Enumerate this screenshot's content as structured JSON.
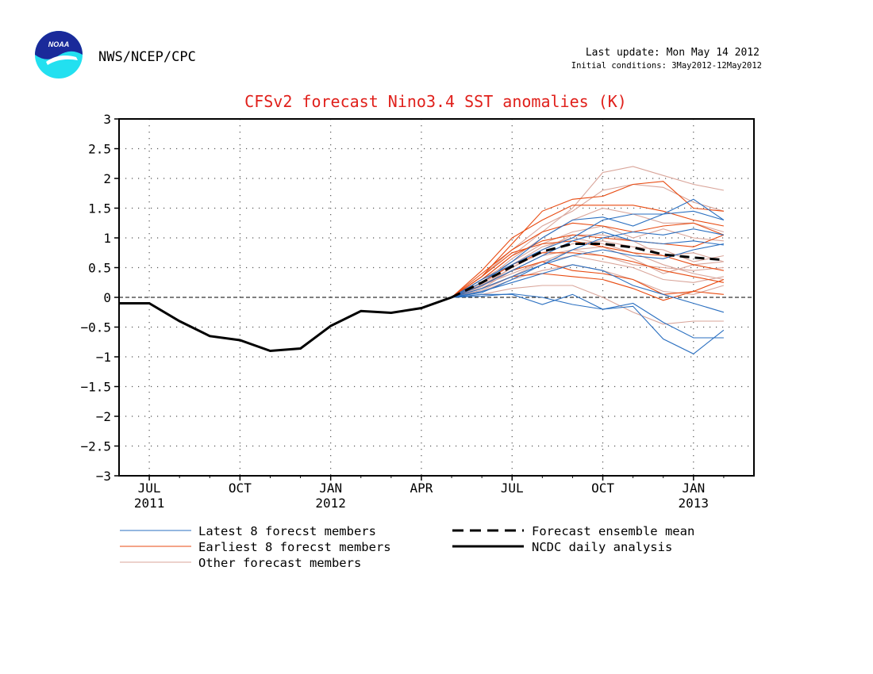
{
  "header": {
    "agency": "NWS/NCEP/CPC",
    "logo_text": "NOAA",
    "last_update": "Last update: Mon May 14 2012",
    "initial_conditions": "Initial conditions: 3May2012-12May2012"
  },
  "colors": {
    "title": "#e0201b",
    "latest": "#2a6fc0",
    "earliest": "#e84a10",
    "other": "#d9a59a",
    "mean": "#000000",
    "analysis": "#000000",
    "logo_top": "#1a2a9a",
    "logo_bottom": "#22e0f0"
  },
  "chart_data": {
    "type": "line",
    "title": "CFSv2 forecast Nino3.4 SST anomalies (K)",
    "xlabel": "",
    "ylabel": "",
    "ylim": [
      -3,
      3
    ],
    "xlim": [
      0,
      21
    ],
    "grid": true,
    "legend_position": "bottom",
    "yticks": [
      "3",
      "2.5",
      "2",
      "1.5",
      "1",
      "0.5",
      "0",
      "-0.5",
      "-1",
      "-1.5",
      "-2",
      "-2.5",
      "-3"
    ],
    "xticks": [
      {
        "month": "JUL",
        "year": "2011"
      },
      {
        "month": "OCT",
        "year": ""
      },
      {
        "month": "JAN",
        "year": "2012"
      },
      {
        "month": "APR",
        "year": ""
      },
      {
        "month": "JUL",
        "year": ""
      },
      {
        "month": "OCT",
        "year": ""
      },
      {
        "month": "JAN",
        "year": "2013"
      }
    ],
    "legend": [
      {
        "label": "Latest 8 forecst members",
        "style": "latest"
      },
      {
        "label": "Earliest 8 forecst members",
        "style": "earliest"
      },
      {
        "label": "Other forecast members",
        "style": "other"
      },
      {
        "label": "Forecast ensemble mean",
        "style": "mean"
      },
      {
        "label": "NCDC daily analysis",
        "style": "analysis"
      }
    ],
    "analysis": {
      "name": "NCDC daily analysis",
      "x": [
        "2011-06",
        "2011-07",
        "2011-08",
        "2011-09",
        "2011-10",
        "2011-11",
        "2011-12",
        "2012-01",
        "2012-02",
        "2012-03",
        "2012-04",
        "2012-05"
      ],
      "y": [
        -0.1,
        -0.1,
        -0.4,
        -0.65,
        -0.72,
        -0.9,
        -0.86,
        -0.48,
        -0.23,
        -0.26,
        -0.18,
        0.0
      ]
    },
    "forecast_months": [
      "2012-05",
      "2012-06",
      "2012-07",
      "2012-08",
      "2012-09",
      "2012-10",
      "2012-11",
      "2012-12",
      "2013-01",
      "2013-02"
    ],
    "ensemble_mean": {
      "name": "Forecast ensemble mean",
      "y": [
        0.0,
        0.25,
        0.52,
        0.77,
        0.9,
        0.9,
        0.84,
        0.72,
        0.67,
        0.63
      ]
    },
    "members_latest": [
      [
        0,
        0.05,
        0.05,
        -0.12,
        0.05,
        -0.2,
        -0.15,
        -0.7,
        -0.95,
        -0.55
      ],
      [
        0,
        0.02,
        0.06,
        0.0,
        -0.12,
        -0.2,
        -0.1,
        -0.42,
        -0.68,
        -0.68
      ],
      [
        0,
        0.1,
        0.25,
        0.4,
        0.55,
        0.45,
        0.2,
        0.05,
        -0.1,
        -0.25
      ],
      [
        0,
        0.3,
        0.55,
        0.8,
        1.0,
        1.3,
        1.4,
        1.4,
        1.45,
        1.3
      ],
      [
        0,
        0.25,
        0.6,
        1.0,
        1.3,
        1.35,
        1.2,
        1.4,
        1.65,
        1.3
      ],
      [
        0,
        0.2,
        0.45,
        0.7,
        0.95,
        1.1,
        0.95,
        0.9,
        0.95,
        0.88
      ],
      [
        0,
        0.15,
        0.35,
        0.55,
        0.7,
        0.8,
        0.7,
        0.65,
        0.8,
        0.9
      ],
      [
        0,
        0.08,
        0.3,
        0.55,
        0.8,
        1.0,
        1.1,
        1.05,
        1.15,
        1.05
      ]
    ],
    "members_earliest": [
      [
        0,
        0.35,
        0.9,
        1.45,
        1.65,
        1.7,
        1.9,
        1.95,
        1.5,
        1.45
      ],
      [
        0,
        0.45,
        1.0,
        1.3,
        1.55,
        1.55,
        1.55,
        1.45,
        1.3,
        1.2
      ],
      [
        0,
        0.4,
        0.8,
        1.1,
        1.25,
        1.2,
        1.1,
        1.2,
        1.25,
        1.05
      ],
      [
        0,
        0.3,
        0.7,
        0.95,
        1.05,
        1.0,
        0.95,
        0.9,
        0.85,
        1.05
      ],
      [
        0,
        0.35,
        0.75,
        0.9,
        0.95,
        0.85,
        0.75,
        0.7,
        0.55,
        0.45
      ],
      [
        0,
        0.25,
        0.55,
        0.75,
        0.75,
        0.7,
        0.6,
        0.45,
        0.35,
        0.25
      ],
      [
        0,
        0.2,
        0.45,
        0.6,
        0.45,
        0.4,
        0.3,
        0.05,
        0.1,
        0.3
      ],
      [
        0,
        0.15,
        0.35,
        0.4,
        0.35,
        0.3,
        0.15,
        -0.05,
        0.1,
        0.05
      ]
    ],
    "members_other": [
      [
        0,
        0.3,
        0.7,
        1.1,
        1.5,
        2.1,
        2.2,
        2.05,
        1.9,
        1.8
      ],
      [
        0,
        0.35,
        0.8,
        1.2,
        1.45,
        1.8,
        1.9,
        1.85,
        1.6,
        1.45
      ],
      [
        0,
        0.25,
        0.65,
        1.0,
        1.3,
        1.5,
        1.4,
        1.25,
        1.25,
        1.1
      ],
      [
        0,
        0.3,
        0.6,
        0.9,
        1.1,
        1.2,
        1.0,
        1.15,
        1.0,
        0.95
      ],
      [
        0,
        0.2,
        0.5,
        0.75,
        0.9,
        0.95,
        0.85,
        0.8,
        0.6,
        0.7
      ],
      [
        0,
        0.15,
        0.45,
        0.7,
        0.8,
        0.7,
        0.55,
        0.5,
        0.45,
        0.5
      ],
      [
        0,
        0.2,
        0.4,
        0.6,
        0.7,
        0.6,
        0.5,
        0.3,
        0.25,
        0.35
      ],
      [
        0,
        0.1,
        0.3,
        0.45,
        0.55,
        0.45,
        0.3,
        0.1,
        0.05,
        0.2
      ],
      [
        0,
        0.05,
        0.15,
        0.2,
        0.2,
        0.0,
        -0.25,
        -0.45,
        -0.4,
        -0.4
      ],
      [
        0,
        0.18,
        0.5,
        0.8,
        1.05,
        1.05,
        0.95,
        0.7,
        0.75,
        0.6
      ],
      [
        0,
        0.22,
        0.55,
        0.85,
        1.0,
        0.9,
        0.75,
        0.55,
        0.4,
        0.3
      ],
      [
        0,
        0.12,
        0.35,
        0.6,
        0.8,
        0.85,
        0.65,
        0.4,
        0.55,
        0.6
      ]
    ]
  }
}
